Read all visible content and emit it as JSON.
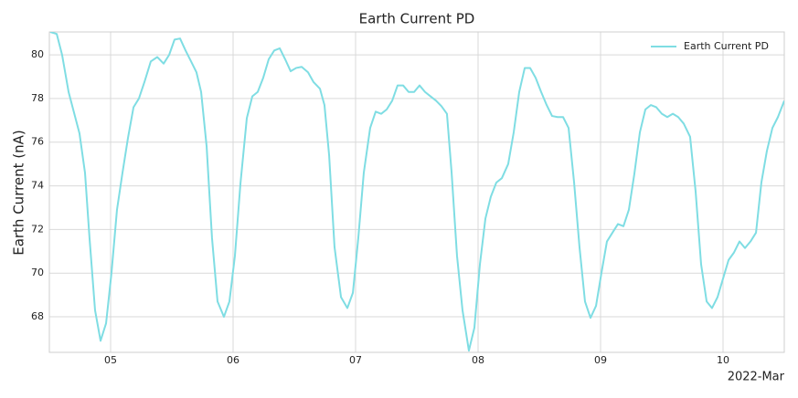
{
  "chart_data": {
    "type": "line",
    "title": "Earth Current PD",
    "y_label": "Earth Current (nA)",
    "x_offset_label": "2022-Mar",
    "x": [
      4.507,
      4.56,
      4.604,
      4.657,
      4.746,
      4.791,
      4.828,
      4.873,
      4.918,
      4.963,
      5.007,
      5.052,
      5.097,
      5.142,
      5.187,
      5.231,
      5.276,
      5.328,
      5.381,
      5.433,
      5.478,
      5.522,
      5.567,
      5.612,
      5.657,
      5.701,
      5.739,
      5.784,
      5.828,
      5.873,
      5.925,
      5.97,
      6.015,
      6.06,
      6.112,
      6.157,
      6.201,
      6.246,
      6.291,
      6.336,
      6.381,
      6.425,
      6.47,
      6.515,
      6.56,
      6.612,
      6.657,
      6.709,
      6.746,
      6.784,
      6.828,
      6.881,
      6.933,
      6.978,
      7.022,
      7.067,
      7.119,
      7.164,
      7.209,
      7.254,
      7.299,
      7.343,
      7.388,
      7.433,
      7.478,
      7.522,
      7.567,
      7.612,
      7.657,
      7.701,
      7.746,
      7.784,
      7.828,
      7.873,
      7.925,
      7.97,
      8.015,
      8.06,
      8.104,
      8.149,
      8.194,
      8.246,
      8.291,
      8.336,
      8.381,
      8.425,
      8.47,
      8.515,
      8.56,
      8.604,
      8.649,
      8.694,
      8.739,
      8.784,
      8.828,
      8.873,
      8.918,
      8.963,
      9.007,
      9.052,
      9.097,
      9.142,
      9.187,
      9.231,
      9.276,
      9.321,
      9.366,
      9.41,
      9.455,
      9.5,
      9.545,
      9.59,
      9.634,
      9.679,
      9.731,
      9.776,
      9.821,
      9.866,
      9.91,
      9.955,
      10.0,
      10.045,
      10.09,
      10.134,
      10.179,
      10.224,
      10.269,
      10.313,
      10.358,
      10.403,
      10.448,
      10.5
    ],
    "series": [
      {
        "name": "Earth Current PD",
        "color": "#7fdde3",
        "values": [
          81.05,
          80.96,
          80.0,
          78.3,
          76.4,
          74.6,
          71.6,
          68.3,
          66.9,
          67.7,
          70.0,
          72.9,
          74.6,
          76.2,
          77.6,
          78.0,
          78.75,
          79.7,
          79.9,
          79.6,
          80.0,
          80.7,
          80.75,
          80.2,
          79.7,
          79.2,
          78.3,
          75.8,
          71.6,
          68.7,
          68.0,
          68.7,
          70.8,
          74.1,
          77.1,
          78.1,
          78.3,
          78.95,
          79.8,
          80.2,
          80.3,
          79.8,
          79.25,
          79.4,
          79.45,
          79.2,
          78.75,
          78.45,
          77.7,
          75.4,
          71.2,
          68.9,
          68.4,
          69.1,
          71.6,
          74.6,
          76.65,
          77.4,
          77.3,
          77.5,
          77.9,
          78.6,
          78.6,
          78.3,
          78.3,
          78.6,
          78.3,
          78.1,
          77.9,
          77.65,
          77.3,
          74.6,
          70.8,
          68.3,
          66.45,
          67.5,
          70.4,
          72.5,
          73.5,
          74.15,
          74.35,
          75.0,
          76.45,
          78.3,
          79.4,
          79.4,
          78.95,
          78.3,
          77.7,
          77.2,
          77.15,
          77.15,
          76.65,
          74.15,
          71.2,
          68.7,
          67.95,
          68.5,
          70.0,
          71.45,
          71.85,
          72.25,
          72.15,
          72.9,
          74.55,
          76.45,
          77.5,
          77.7,
          77.6,
          77.3,
          77.15,
          77.3,
          77.15,
          76.85,
          76.25,
          73.75,
          70.4,
          68.7,
          68.4,
          68.9,
          69.75,
          70.6,
          70.95,
          71.45,
          71.15,
          71.45,
          71.85,
          74.15,
          75.6,
          76.65,
          77.15,
          77.9
        ]
      }
    ],
    "xlim": [
      4.5,
      10.5
    ],
    "xticks": [
      {
        "value": 5,
        "label": "05"
      },
      {
        "value": 6,
        "label": "06"
      },
      {
        "value": 7,
        "label": "07"
      },
      {
        "value": 8,
        "label": "08"
      },
      {
        "value": 9,
        "label": "09"
      },
      {
        "value": 10,
        "label": "10"
      }
    ],
    "ylim": [
      66.37,
      81.05
    ],
    "yticks": [
      68,
      70,
      72,
      74,
      76,
      78,
      80
    ],
    "grid": true,
    "legend": "upper right"
  }
}
